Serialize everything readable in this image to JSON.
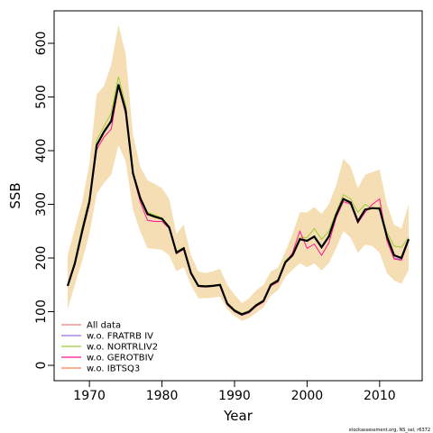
{
  "chart_data": {
    "type": "line",
    "xlabel": "Year",
    "ylabel": "SSB",
    "xlim": [
      1967,
      2014
    ],
    "ylim": [
      0,
      620
    ],
    "x_ticks": [
      1970,
      1980,
      1990,
      2000,
      2010
    ],
    "y_ticks": [
      0,
      100,
      200,
      300,
      400,
      500,
      600
    ],
    "grid": false,
    "legend_position": "bottom-left",
    "credit": "stockassessment.org, NS_sel, r6372",
    "band": {
      "color": "#f5deb3",
      "x": [
        1967,
        1968,
        1969,
        1970,
        1971,
        1972,
        1973,
        1974,
        1975,
        1976,
        1977,
        1978,
        1979,
        1980,
        1981,
        1982,
        1983,
        1984,
        1985,
        1986,
        1987,
        1988,
        1989,
        1990,
        1991,
        1992,
        1993,
        1994,
        1995,
        1996,
        1997,
        1998,
        1999,
        2000,
        2001,
        2002,
        2003,
        2004,
        2005,
        2006,
        2007,
        2008,
        2009,
        2010,
        2011,
        2012,
        2013,
        2014
      ],
      "lower": [
        105,
        150,
        195,
        245,
        320,
        340,
        355,
        410,
        380,
        290,
        250,
        218,
        217,
        215,
        205,
        175,
        183,
        150,
        125,
        125,
        126,
        128,
        105,
        92,
        83,
        88,
        98,
        108,
        130,
        140,
        165,
        178,
        190,
        183,
        190,
        177,
        190,
        218,
        250,
        238,
        210,
        225,
        222,
        210,
        172,
        158,
        152,
        178
      ],
      "upper": [
        205,
        255,
        305,
        375,
        505,
        520,
        560,
        635,
        580,
        430,
        370,
        345,
        338,
        330,
        310,
        245,
        262,
        205,
        175,
        172,
        175,
        180,
        150,
        132,
        116,
        125,
        140,
        150,
        175,
        182,
        212,
        245,
        285,
        285,
        295,
        282,
        300,
        335,
        385,
        370,
        330,
        355,
        360,
        365,
        300,
        262,
        255,
        300
      ]
    },
    "series": [
      {
        "name": "All data",
        "color": "#f08080",
        "values": [
          148,
          190,
          250,
          305,
          410,
          435,
          455,
          523,
          475,
          358,
          312,
          282,
          277,
          273,
          257,
          210,
          218,
          172,
          148,
          147,
          148,
          150,
          115,
          102,
          95,
          100,
          112,
          120,
          150,
          158,
          192,
          205,
          235,
          232,
          240,
          220,
          240,
          280,
          310,
          303,
          268,
          290,
          293,
          292,
          240,
          205,
          200,
          235
        ]
      },
      {
        "name": "w.o. FRATRB IV",
        "color": "#9370db",
        "values": [
          148,
          190,
          250,
          305,
          410,
          435,
          458,
          525,
          476,
          358,
          312,
          282,
          277,
          273,
          257,
          210,
          218,
          172,
          148,
          147,
          148,
          150,
          115,
          100,
          93,
          98,
          112,
          120,
          150,
          157,
          191,
          204,
          234,
          232,
          238,
          222,
          238,
          278,
          310,
          305,
          270,
          290,
          292,
          292,
          240,
          200,
          197,
          235
        ]
      },
      {
        "name": "w.o. NORTRLIV2",
        "color": "#9acd32",
        "values": [
          148,
          195,
          258,
          312,
          420,
          445,
          470,
          538,
          485,
          362,
          315,
          285,
          280,
          275,
          259,
          212,
          220,
          173,
          149,
          148,
          149,
          151,
          117,
          104,
          97,
          102,
          114,
          122,
          152,
          160,
          195,
          208,
          238,
          238,
          255,
          235,
          250,
          285,
          318,
          310,
          285,
          300,
          292,
          295,
          248,
          222,
          220,
          238
        ]
      },
      {
        "name": "w.o. GEROTBIV",
        "color": "#ff1493",
        "values": [
          148,
          188,
          246,
          300,
          402,
          425,
          440,
          520,
          468,
          355,
          305,
          270,
          268,
          268,
          255,
          208,
          216,
          170,
          147,
          146,
          147,
          149,
          113,
          100,
          94,
          98,
          110,
          118,
          148,
          155,
          190,
          210,
          250,
          218,
          226,
          205,
          228,
          275,
          305,
          300,
          265,
          285,
          300,
          310,
          232,
          198,
          196,
          232
        ]
      },
      {
        "name": "w.o. IBTSQ3",
        "color": "#ff7f50",
        "values": [
          148,
          190,
          250,
          305,
          410,
          435,
          455,
          523,
          475,
          358,
          312,
          280,
          276,
          272,
          256,
          210,
          218,
          172,
          148,
          147,
          148,
          150,
          115,
          102,
          95,
          100,
          112,
          120,
          150,
          158,
          192,
          205,
          235,
          232,
          240,
          220,
          240,
          280,
          310,
          303,
          268,
          290,
          293,
          292,
          240,
          205,
          200,
          235
        ]
      }
    ]
  }
}
